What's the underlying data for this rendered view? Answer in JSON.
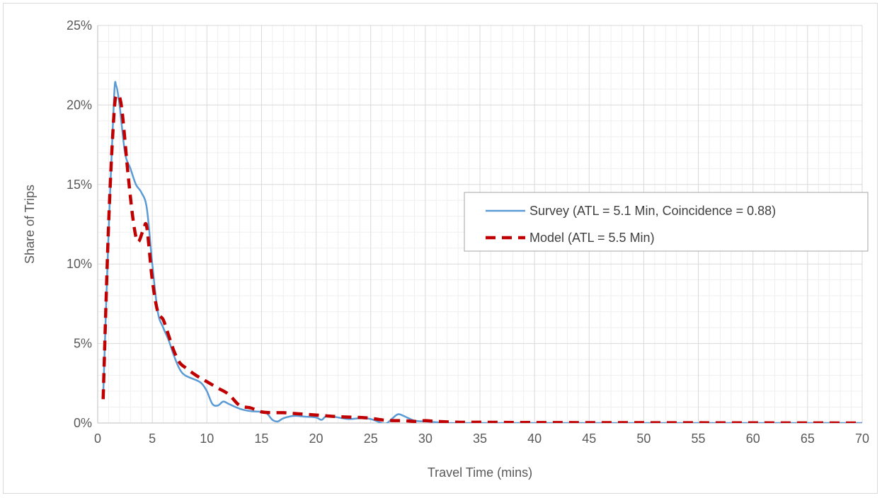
{
  "chart_data": {
    "type": "line",
    "title": "",
    "xlabel": "Travel Time (mins)",
    "ylabel": "Share of Trips",
    "xlim": [
      0,
      70
    ],
    "ylim": [
      0,
      25
    ],
    "x_ticks": [
      0,
      5,
      10,
      15,
      20,
      25,
      30,
      35,
      40,
      45,
      50,
      55,
      60,
      65,
      70
    ],
    "x_tick_labels": [
      "0",
      "5",
      "10",
      "15",
      "20",
      "25",
      "30",
      "35",
      "40",
      "45",
      "50",
      "55",
      "60",
      "65",
      "70"
    ],
    "y_ticks": [
      0,
      5,
      10,
      15,
      20,
      25
    ],
    "y_tick_labels": [
      "0%",
      "5%",
      "10%",
      "15%",
      "20%",
      "25%"
    ],
    "grid": true,
    "minor_grid": true,
    "legend_position": "right",
    "series": [
      {
        "name": "Survey (ATL = 5.1 Min, Coincidence = 0.88)",
        "color": "#5B9BD5",
        "style": "solid",
        "points": [
          [
            0.5,
            1.6
          ],
          [
            1.0,
            12.0
          ],
          [
            1.5,
            20.5
          ],
          [
            1.7,
            21.2
          ],
          [
            2.0,
            20.0
          ],
          [
            2.5,
            17.0
          ],
          [
            3.0,
            16.0
          ],
          [
            3.5,
            15.0
          ],
          [
            4.0,
            14.5
          ],
          [
            4.5,
            13.5
          ],
          [
            5.0,
            10.0
          ],
          [
            5.5,
            7.0
          ],
          [
            6.0,
            6.0
          ],
          [
            6.5,
            5.2
          ],
          [
            7.0,
            4.2
          ],
          [
            7.5,
            3.4
          ],
          [
            8.0,
            3.0
          ],
          [
            9.0,
            2.7
          ],
          [
            9.5,
            2.5
          ],
          [
            10.0,
            2.0
          ],
          [
            10.5,
            1.2
          ],
          [
            11.0,
            1.1
          ],
          [
            11.5,
            1.35
          ],
          [
            12.0,
            1.2
          ],
          [
            13.0,
            0.9
          ],
          [
            14.0,
            0.75
          ],
          [
            15.0,
            0.7
          ],
          [
            15.5,
            0.6
          ],
          [
            16.0,
            0.2
          ],
          [
            16.5,
            0.1
          ],
          [
            17.0,
            0.3
          ],
          [
            18.0,
            0.45
          ],
          [
            19.0,
            0.4
          ],
          [
            20.0,
            0.35
          ],
          [
            20.5,
            0.2
          ],
          [
            21.0,
            0.45
          ],
          [
            22.0,
            0.35
          ],
          [
            23.0,
            0.25
          ],
          [
            24.0,
            0.3
          ],
          [
            25.0,
            0.25
          ],
          [
            26.0,
            0.0
          ],
          [
            26.5,
            0.0
          ],
          [
            27.0,
            0.3
          ],
          [
            27.5,
            0.55
          ],
          [
            28.0,
            0.45
          ],
          [
            29.0,
            0.15
          ],
          [
            30.0,
            0.1
          ],
          [
            31.0,
            0.05
          ],
          [
            32.0,
            0.0
          ],
          [
            35.0,
            0.0
          ],
          [
            40.0,
            0.0
          ],
          [
            50.0,
            0.0
          ],
          [
            60.0,
            0.0
          ],
          [
            70.0,
            0.0
          ]
        ]
      },
      {
        "name": "Model (ATL = 5.5 Min)",
        "color": "#C00000",
        "style": "dashed",
        "points": [
          [
            0.5,
            1.5
          ],
          [
            1.0,
            12.5
          ],
          [
            1.5,
            19.5
          ],
          [
            1.8,
            20.6
          ],
          [
            2.2,
            19.8
          ],
          [
            2.8,
            15.5
          ],
          [
            3.3,
            12.5
          ],
          [
            3.7,
            11.4
          ],
          [
            4.2,
            12.2
          ],
          [
            4.5,
            12.3
          ],
          [
            5.0,
            9.0
          ],
          [
            5.5,
            7.0
          ],
          [
            6.0,
            6.5
          ],
          [
            6.5,
            5.5
          ],
          [
            7.0,
            4.5
          ],
          [
            7.5,
            3.8
          ],
          [
            8.0,
            3.5
          ],
          [
            9.0,
            3.0
          ],
          [
            10.0,
            2.6
          ],
          [
            11.0,
            2.2
          ],
          [
            12.0,
            1.8
          ],
          [
            13.0,
            1.1
          ],
          [
            14.0,
            0.95
          ],
          [
            15.0,
            0.7
          ],
          [
            16.0,
            0.65
          ],
          [
            17.0,
            0.65
          ],
          [
            18.0,
            0.6
          ],
          [
            20.0,
            0.5
          ],
          [
            22.0,
            0.4
          ],
          [
            24.0,
            0.35
          ],
          [
            25.0,
            0.3
          ],
          [
            26.0,
            0.2
          ],
          [
            27.0,
            0.15
          ],
          [
            28.0,
            0.15
          ],
          [
            29.0,
            0.1
          ],
          [
            30.0,
            0.15
          ],
          [
            31.0,
            0.1
          ],
          [
            33.0,
            0.05
          ],
          [
            35.0,
            0.05
          ],
          [
            40.0,
            0.03
          ],
          [
            50.0,
            0.02
          ],
          [
            60.0,
            0.01
          ],
          [
            70.0,
            0.0
          ]
        ]
      }
    ]
  }
}
